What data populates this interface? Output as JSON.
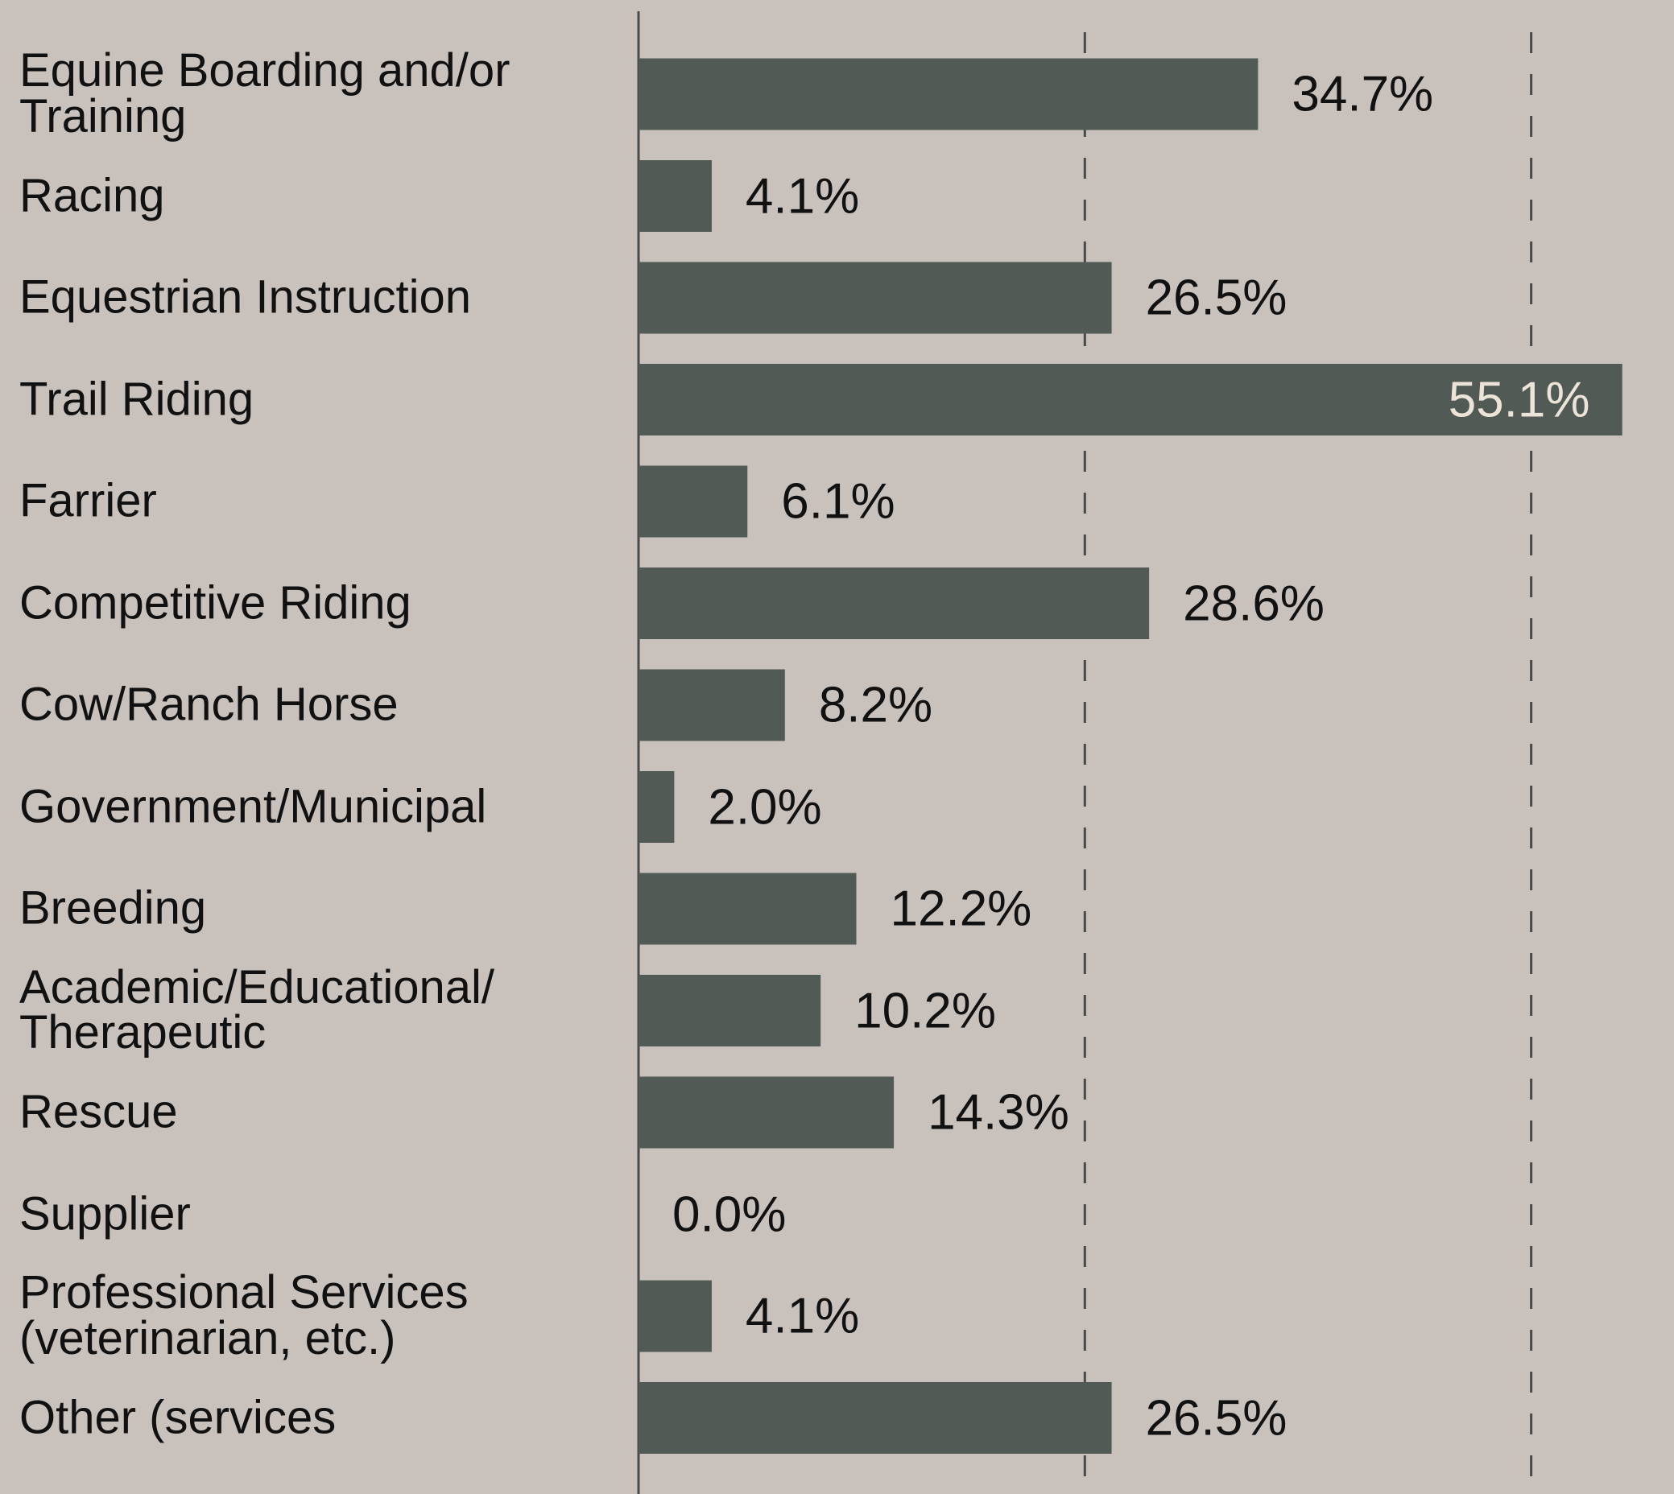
{
  "chart_data": {
    "type": "bar",
    "orientation": "horizontal",
    "categories": [
      "Equine Boarding and/or Training",
      "Racing",
      "Equestrian Instruction",
      "Trail Riding",
      "Farrier",
      "Competitive Riding",
      "Cow/Ranch Horse",
      "Government/Municipal",
      "Breeding",
      "Academic/Educational/ Therapeutic",
      "Rescue",
      "Supplier",
      "Professional Services (veterinarian, etc.)",
      "Other (services"
    ],
    "values": [
      34.7,
      4.1,
      26.5,
      55.1,
      6.1,
      28.6,
      8.2,
      2.0,
      12.2,
      10.2,
      14.3,
      0.0,
      4.1,
      26.5
    ],
    "value_labels": [
      "34.7%",
      "4.1%",
      "26.5%",
      "55.1%",
      "6.1%",
      "28.6%",
      "8.2%",
      "2.0%",
      "12.2%",
      "10.2%",
      "14.3%",
      "0.0%",
      "4.1%",
      "26.5%"
    ],
    "color": "#525a55",
    "xlim": [
      0,
      58
    ],
    "xticks": [
      25,
      50
    ],
    "grid": true
  }
}
